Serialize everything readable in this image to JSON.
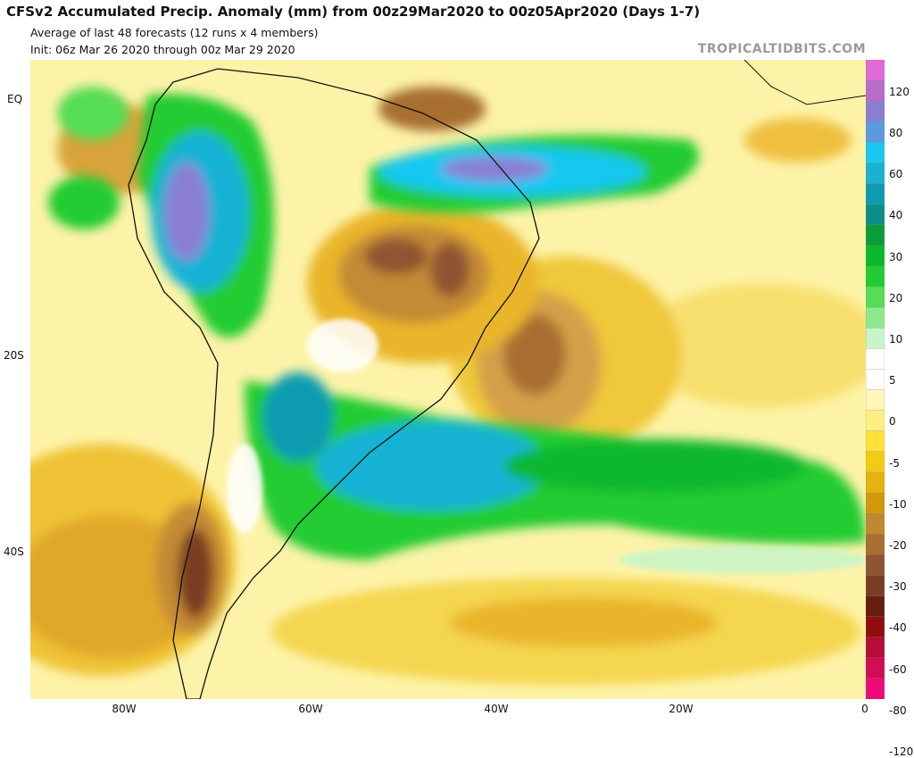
{
  "header": {
    "title": "CFSv2 Accumulated Precip. Anomaly (mm) from 00z29Mar2020 to 00z05Apr2020 (Days 1-7)",
    "subtitle": "Average of last 48 forecasts (12 runs x 4 members)",
    "init": "Init: 06z Mar 26 2020 through 00z Mar 29 2020",
    "brand": "TROPICALTIDBITS.COM"
  },
  "map": {
    "lat_labels": [
      "EQ",
      "20S",
      "40S"
    ],
    "lon_labels": [
      "80W",
      "60W",
      "40W",
      "20W",
      "0"
    ]
  },
  "colorbar": {
    "labels": [
      "120",
      "80",
      "60",
      "40",
      "30",
      "20",
      "10",
      "5",
      "0",
      "-5",
      "-10",
      "-20",
      "-30",
      "-40",
      "-60",
      "-80",
      "-120"
    ],
    "colors": [
      "#e06ad6",
      "#b86ec8",
      "#8a7fd3",
      "#5a9be0",
      "#18c8f0",
      "#19b2d4",
      "#0e9bb0",
      "#0c8f8a",
      "#0b9c3c",
      "#0bb82d",
      "#22cc33",
      "#55dd55",
      "#8ee88e",
      "#c8f5c8",
      "#ffffff",
      "#ffffff",
      "#fff6b8",
      "#ffee80",
      "#ffe13a",
      "#f2cc14",
      "#e5b30e",
      "#d4980c",
      "#c08830",
      "#a86e32",
      "#8f5530",
      "#7a3c22",
      "#661e10",
      "#8e0e0e",
      "#b50c3a",
      "#d20c56",
      "#ee0a78"
    ]
  }
}
